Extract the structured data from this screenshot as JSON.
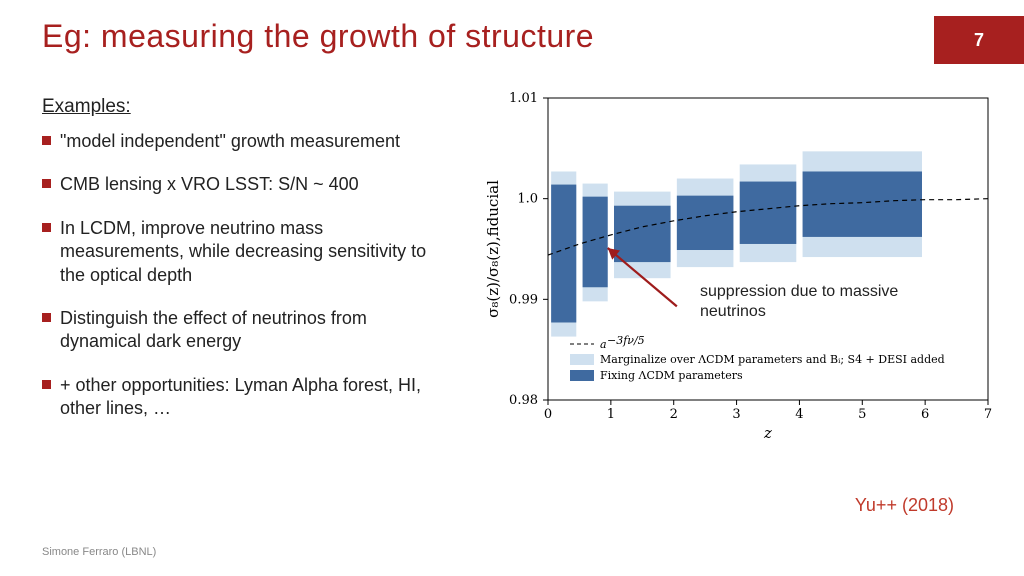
{
  "slide": {
    "title": "Eg: measuring the growth of structure",
    "page_number": "7",
    "examples_heading": "Examples:",
    "bullets": [
      "\"model independent\" growth measurement",
      "CMB lensing x VRO LSST: S/N ~ 400",
      "In LCDM, improve neutrino mass measurements, while decreasing sensitivity to the optical depth",
      "Distinguish the effect of neutrinos from dynamical dark energy",
      "+ other opportunities: Lyman Alpha forest, HI, other lines, …"
    ],
    "footer": "Simone Ferraro (LBNL)",
    "citation": "Yu++ (2018)"
  },
  "annotation": {
    "text": "suppression due to massive neutrinos"
  },
  "colors": {
    "accent": "#a7201f",
    "citation": "#c03a2b",
    "bar_dark": "#3f6aa0",
    "bar_light": "#cfe0ef",
    "axis": "#000000",
    "frame": "#000000",
    "arrow": "#9e1c1c"
  },
  "chart": {
    "type": "bar-with-curve",
    "xlabel": "z",
    "ylabel": "σ₈(z)/σ₈(z),fiducial",
    "xlim": [
      0,
      7
    ],
    "ylim": [
      0.98,
      1.01
    ],
    "xticks": [
      0,
      1,
      2,
      3,
      4,
      5,
      6,
      7
    ],
    "yticks": [
      0.98,
      0.99,
      1.0,
      1.01
    ],
    "ytick_labels": [
      "0.98",
      "0.99",
      "1.0",
      "1.01"
    ],
    "background": "#ffffff",
    "bars": [
      {
        "x0": 0.05,
        "x1": 0.45,
        "dark_lo": 0.9877,
        "dark_hi": 1.0014,
        "light_lo": 0.9863,
        "light_hi": 1.0027
      },
      {
        "x0": 0.55,
        "x1": 0.95,
        "dark_lo": 0.9912,
        "dark_hi": 1.0002,
        "light_lo": 0.9898,
        "light_hi": 1.0015
      },
      {
        "x0": 1.05,
        "x1": 1.95,
        "dark_lo": 0.9937,
        "dark_hi": 0.9993,
        "light_lo": 0.9921,
        "light_hi": 1.0007
      },
      {
        "x0": 2.05,
        "x1": 2.95,
        "dark_lo": 0.9949,
        "dark_hi": 1.0003,
        "light_lo": 0.9932,
        "light_hi": 1.002
      },
      {
        "x0": 3.05,
        "x1": 3.95,
        "dark_lo": 0.9955,
        "dark_hi": 1.0017,
        "light_lo": 0.9937,
        "light_hi": 1.0034
      },
      {
        "x0": 4.05,
        "x1": 5.95,
        "dark_lo": 0.9962,
        "dark_hi": 1.0027,
        "light_lo": 0.9942,
        "light_hi": 1.0047
      }
    ],
    "curve_label": "a^{-3f_ν/5}",
    "curve": [
      [
        0.0,
        0.9944
      ],
      [
        0.5,
        0.9955
      ],
      [
        1.0,
        0.9964
      ],
      [
        1.5,
        0.9972
      ],
      [
        2.0,
        0.9978
      ],
      [
        2.5,
        0.9983
      ],
      [
        3.0,
        0.9987
      ],
      [
        3.5,
        0.999
      ],
      [
        4.0,
        0.9993
      ],
      [
        4.5,
        0.9995
      ],
      [
        5.0,
        0.9996
      ],
      [
        5.5,
        0.9998
      ],
      [
        6.0,
        0.9999
      ],
      [
        6.5,
        0.9999
      ],
      [
        7.0,
        1.0
      ]
    ],
    "legend": {
      "items": [
        {
          "kind": "dash",
          "label": "a^{-3f_ν/5}"
        },
        {
          "kind": "light",
          "label": "Marginalize over ΛCDM parameters and Bᵢ; S4 + DESI added"
        },
        {
          "kind": "dark",
          "label": "Fixing ΛCDM parameters"
        }
      ]
    },
    "arrow": {
      "from": [
        2.05,
        0.9893
      ],
      "to": [
        0.95,
        0.9951
      ]
    }
  }
}
